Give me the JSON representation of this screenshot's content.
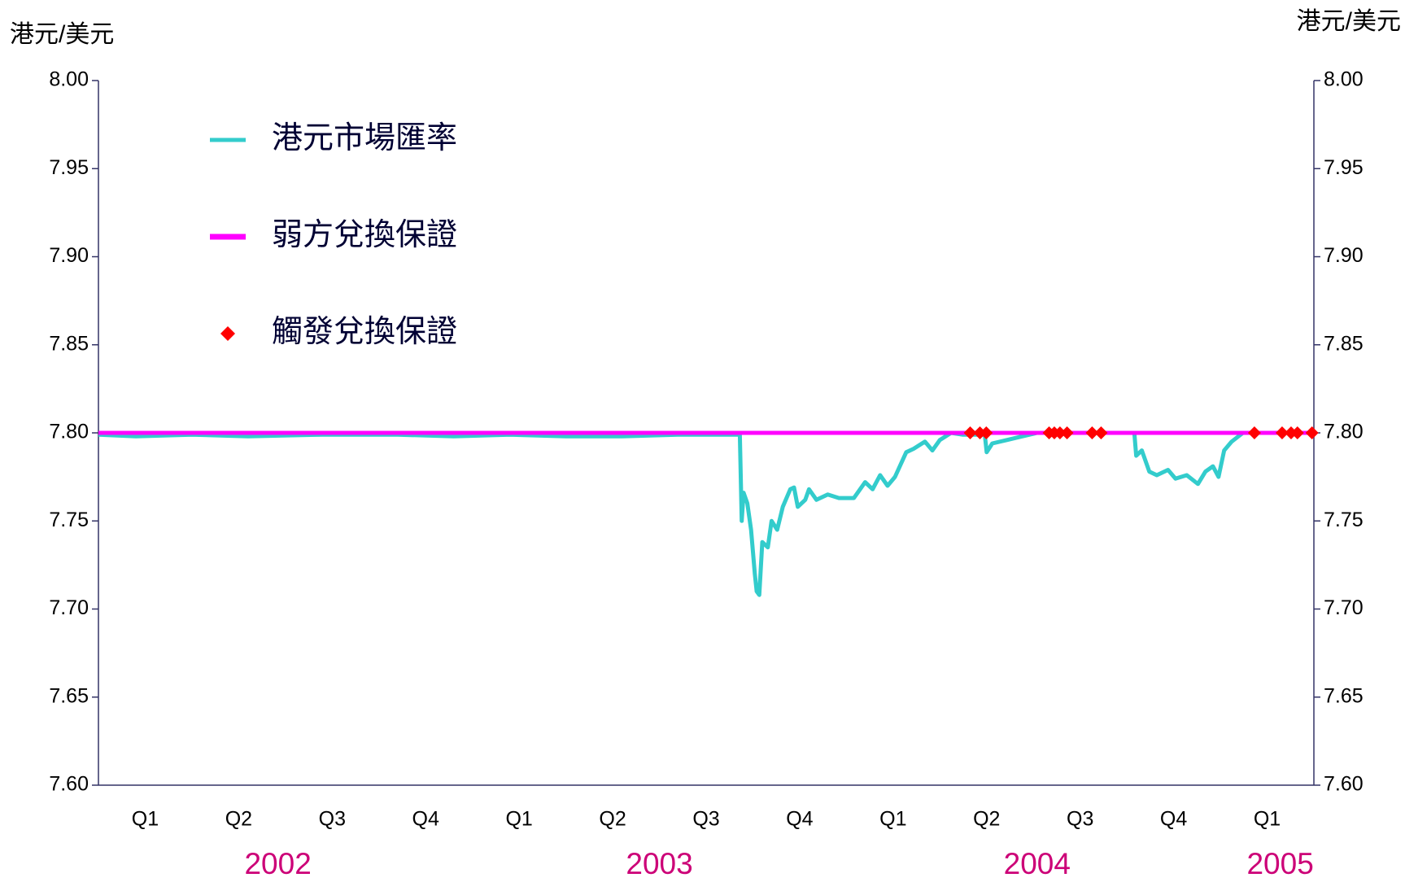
{
  "chart_data": {
    "type": "line",
    "y_label": "港元/美元",
    "y2_label": "港元/美元",
    "xlim": [
      2002.0,
      2005.25
    ],
    "xticks": [
      {
        "value": 2002.125,
        "label": "Q1"
      },
      {
        "value": 2002.375,
        "label": "Q2"
      },
      {
        "value": 2002.625,
        "label": "Q3"
      },
      {
        "value": 2002.875,
        "label": "Q4"
      },
      {
        "value": 2003.125,
        "label": "Q1"
      },
      {
        "value": 2003.375,
        "label": "Q2"
      },
      {
        "value": 2003.625,
        "label": "Q3"
      },
      {
        "value": 2003.875,
        "label": "Q4"
      },
      {
        "value": 2004.125,
        "label": "Q1"
      },
      {
        "value": 2004.375,
        "label": "Q2"
      },
      {
        "value": 2004.625,
        "label": "Q3"
      },
      {
        "value": 2004.875,
        "label": "Q4"
      },
      {
        "value": 2005.125,
        "label": "Q1"
      }
    ],
    "year_labels": [
      {
        "value": 2002.48,
        "label": "2002"
      },
      {
        "value": 2003.5,
        "label": "2003"
      },
      {
        "value": 2004.51,
        "label": "2004"
      },
      {
        "value": 2005.16,
        "label": "2005"
      }
    ],
    "year_color": "#cc0077",
    "ylim": [
      7.6,
      8.0
    ],
    "yticks": [
      {
        "value": 7.6,
        "label": "7.60"
      },
      {
        "value": 7.65,
        "label": "7.65"
      },
      {
        "value": 7.7,
        "label": "7.70"
      },
      {
        "value": 7.75,
        "label": "7.75"
      },
      {
        "value": 7.8,
        "label": "7.80"
      },
      {
        "value": 7.85,
        "label": "7.85"
      },
      {
        "value": 7.9,
        "label": "7.90"
      },
      {
        "value": 7.95,
        "label": "7.95"
      },
      {
        "value": 8.0,
        "label": "8.00"
      }
    ],
    "y2lim": [
      7.6,
      8.0
    ],
    "y2ticks": [
      {
        "value": 7.6,
        "label": "7.60"
      },
      {
        "value": 7.65,
        "label": "7.65"
      },
      {
        "value": 7.7,
        "label": "7.70"
      },
      {
        "value": 7.75,
        "label": "7.75"
      },
      {
        "value": 7.8,
        "label": "7.80"
      },
      {
        "value": 7.85,
        "label": "7.85"
      },
      {
        "value": 7.9,
        "label": "7.90"
      },
      {
        "value": 7.95,
        "label": "7.95"
      },
      {
        "value": 8.0,
        "label": "8.00"
      }
    ],
    "legend": "top-left",
    "series": [
      {
        "name": "港元市場匯率",
        "color": "#33cccc",
        "kind": "line",
        "x": [
          2002.0,
          2002.1,
          2002.25,
          2002.4,
          2002.6,
          2002.8,
          2002.95,
          2003.1,
          2003.25,
          2003.4,
          2003.55,
          2003.715,
          2003.72,
          2003.725,
          2003.735,
          2003.745,
          2003.755,
          2003.76,
          2003.767,
          2003.775,
          2003.79,
          2003.8,
          2003.815,
          2003.83,
          2003.85,
          2003.86,
          2003.87,
          2003.89,
          2003.9,
          2003.92,
          2003.95,
          2003.98,
          2004.02,
          2004.05,
          2004.07,
          2004.09,
          2004.11,
          2004.13,
          2004.16,
          2004.18,
          2004.21,
          2004.23,
          2004.25,
          2004.28,
          2004.31,
          2004.37,
          2004.375,
          2004.39,
          2004.43,
          2004.47,
          2004.51,
          2004.6,
          2004.7,
          2004.77,
          2004.775,
          2004.79,
          2004.81,
          2004.83,
          2004.86,
          2004.88,
          2004.91,
          2004.94,
          2004.96,
          2004.98,
          2004.995,
          2005.01,
          2005.03,
          2005.06,
          2005.25
        ],
        "values": [
          7.799,
          7.798,
          7.799,
          7.798,
          7.799,
          7.799,
          7.798,
          7.799,
          7.798,
          7.798,
          7.799,
          7.799,
          7.75,
          7.766,
          7.76,
          7.745,
          7.72,
          7.71,
          7.708,
          7.738,
          7.735,
          7.75,
          7.745,
          7.758,
          7.768,
          7.769,
          7.758,
          7.762,
          7.768,
          7.762,
          7.765,
          7.763,
          7.763,
          7.772,
          7.768,
          7.776,
          7.77,
          7.775,
          7.789,
          7.791,
          7.795,
          7.79,
          7.796,
          7.8,
          7.799,
          7.799,
          7.789,
          7.794,
          7.796,
          7.798,
          7.8,
          7.8,
          7.8,
          7.8,
          7.787,
          7.79,
          7.778,
          7.776,
          7.779,
          7.774,
          7.776,
          7.771,
          7.778,
          7.781,
          7.775,
          7.79,
          7.795,
          7.8,
          7.8
        ]
      },
      {
        "name": "弱方兌換保證",
        "color": "#ff00ff",
        "kind": "line",
        "x": [
          2002.0,
          2005.25
        ],
        "values": [
          7.8,
          7.8
        ]
      },
      {
        "name": "觸發兌換保證",
        "color": "#ff0000",
        "kind": "scatter",
        "x": [
          2004.331,
          2004.357,
          2004.374,
          2004.542,
          2004.556,
          2004.571,
          2004.59,
          2004.657,
          2004.681,
          2005.091,
          2005.165,
          2005.189,
          2005.206,
          2005.245
        ],
        "values": [
          7.8,
          7.8,
          7.8,
          7.8,
          7.8,
          7.8,
          7.8,
          7.8,
          7.8,
          7.8,
          7.8,
          7.8,
          7.8,
          7.8
        ]
      }
    ]
  }
}
